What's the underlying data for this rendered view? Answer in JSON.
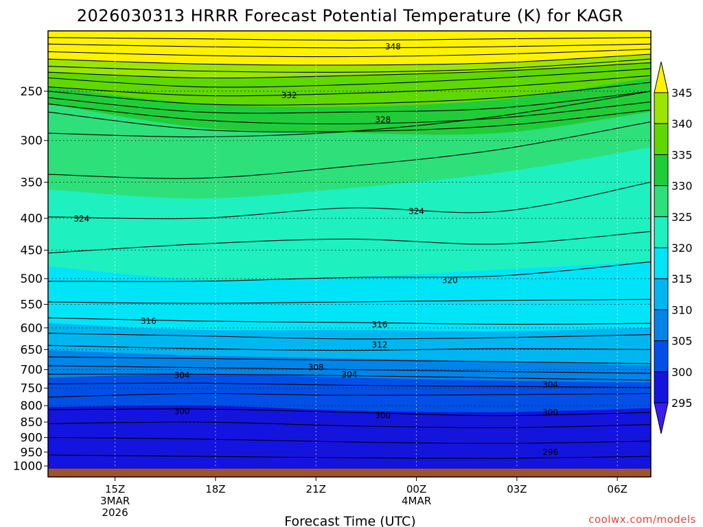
{
  "chart_data": {
    "type": "heatmap",
    "title": "2026030313 HRRR Forecast Potential Temperature (K) for KAGR",
    "xlabel": "Forecast Time (UTC)",
    "ylabel": "",
    "credit": "coolwx.com/models",
    "x_ticks": [
      {
        "h": 15,
        "lines": [
          "15Z",
          "3MAR",
          "2026"
        ]
      },
      {
        "h": 18,
        "lines": [
          "18Z"
        ]
      },
      {
        "h": 21,
        "lines": [
          "21Z"
        ]
      },
      {
        "h": 24,
        "lines": [
          "00Z",
          "4MAR"
        ]
      },
      {
        "h": 27,
        "lines": [
          "03Z"
        ]
      },
      {
        "h": 30,
        "lines": [
          "06Z"
        ]
      }
    ],
    "xlim_hours": [
      13,
      31
    ],
    "y_ticks": [
      250,
      300,
      350,
      400,
      450,
      500,
      550,
      600,
      650,
      700,
      750,
      800,
      850,
      900,
      950,
      1000
    ],
    "ylim_hpa": [
      200,
      1010
    ],
    "colorbar": {
      "ticks": [
        345,
        340,
        335,
        330,
        325,
        320,
        315,
        310,
        305,
        300,
        295
      ],
      "bins": [
        {
          "lo": 340,
          "hi": 345,
          "color": "#9ae600"
        },
        {
          "lo": 335,
          "hi": 340,
          "color": "#5fd800"
        },
        {
          "lo": 330,
          "hi": 335,
          "color": "#20cd38"
        },
        {
          "lo": 325,
          "hi": 330,
          "color": "#2ee07a"
        },
        {
          "lo": 320,
          "hi": 325,
          "color": "#1ef0c0"
        },
        {
          "lo": 315,
          "hi": 320,
          "color": "#00e4f8"
        },
        {
          "lo": 310,
          "hi": 315,
          "color": "#00b6f0"
        },
        {
          "lo": 305,
          "hi": 310,
          "color": "#0084e8"
        },
        {
          "lo": 300,
          "hi": 305,
          "color": "#0050e8"
        },
        {
          "lo": 295,
          "hi": 300,
          "color": "#1414e0"
        }
      ],
      "over_color": "#fff200",
      "under_color": "#3a1cf0"
    },
    "contour_labels": [
      {
        "text": "348",
        "h": 23.3,
        "p": 212
      },
      {
        "text": "332",
        "h": 20.2,
        "p": 254
      },
      {
        "text": "328",
        "h": 23.0,
        "p": 278
      },
      {
        "text": "324",
        "h": 14.0,
        "p": 401
      },
      {
        "text": "324",
        "h": 24.0,
        "p": 390
      },
      {
        "text": "320",
        "h": 25.0,
        "p": 503
      },
      {
        "text": "316",
        "h": 16.0,
        "p": 585
      },
      {
        "text": "316",
        "h": 22.9,
        "p": 593
      },
      {
        "text": "312",
        "h": 22.9,
        "p": 639
      },
      {
        "text": "308",
        "h": 21.0,
        "p": 695
      },
      {
        "text": "304",
        "h": 17.0,
        "p": 715
      },
      {
        "text": "304",
        "h": 22.0,
        "p": 713
      },
      {
        "text": "304",
        "h": 28.0,
        "p": 740
      },
      {
        "text": "300",
        "h": 17.0,
        "p": 817
      },
      {
        "text": "300",
        "h": 23.0,
        "p": 830
      },
      {
        "text": "300",
        "h": 28.0,
        "p": 820
      },
      {
        "text": "296",
        "h": 28.0,
        "p": 950
      }
    ],
    "fill_bands": [
      {
        "color": "#fff200",
        "top": [
          200,
          200,
          200,
          200,
          200
        ],
        "bot": [
          222,
          226,
          227,
          225,
          218
        ]
      },
      {
        "color": "#9ae600",
        "top": [
          222,
          226,
          227,
          225,
          218
        ],
        "bot": [
          233,
          238,
          236,
          232,
          225
        ]
      },
      {
        "color": "#5fd800",
        "top": [
          233,
          238,
          236,
          232,
          225
        ],
        "bot": [
          246,
          262,
          265,
          258,
          238
        ]
      },
      {
        "color": "#20cd38",
        "top": [
          246,
          262,
          265,
          258,
          238
        ],
        "bot": [
          262,
          286,
          292,
          292,
          270
        ]
      },
      {
        "color": "#2ee07a",
        "top": [
          262,
          286,
          292,
          292,
          270
        ],
        "bot": [
          360,
          372,
          358,
          338,
          308
        ]
      },
      {
        "color": "#1ef0c0",
        "top": [
          360,
          372,
          358,
          338,
          308
        ],
        "bot": [
          478,
          502,
          498,
          484,
          470
        ]
      },
      {
        "color": "#00e4f8",
        "top": [
          478,
          502,
          498,
          484,
          470
        ],
        "bot": [
          590,
          605,
          605,
          608,
          600
        ]
      },
      {
        "color": "#00b6f0",
        "top": [
          590,
          605,
          605,
          608,
          600
        ],
        "bot": [
          652,
          665,
          672,
          680,
          690
        ]
      },
      {
        "color": "#0084e8",
        "top": [
          652,
          665,
          672,
          680,
          690
        ],
        "bot": [
          722,
          712,
          722,
          730,
          735
        ]
      },
      {
        "color": "#0050e8",
        "top": [
          722,
          712,
          722,
          730,
          735
        ],
        "bot": [
          805,
          800,
          815,
          820,
          808
        ]
      },
      {
        "color": "#1414e0",
        "top": [
          805,
          800,
          815,
          820,
          808
        ],
        "bot": [
          1010,
          1010,
          1010,
          1010,
          1010
        ]
      }
    ],
    "contours": [
      [
        205,
        206,
        207,
        206,
        205
      ],
      [
        210,
        212,
        213,
        212,
        210
      ],
      [
        216,
        219,
        220,
        218,
        214
      ],
      [
        222,
        226,
        227,
        225,
        218
      ],
      [
        228,
        232,
        233,
        230,
        222
      ],
      [
        233,
        238,
        236,
        232,
        225
      ],
      [
        238,
        246,
        244,
        238,
        230
      ],
      [
        246,
        254,
        252,
        246,
        236
      ],
      [
        250,
        262,
        262,
        256,
        242
      ],
      [
        256,
        270,
        270,
        266,
        250
      ],
      [
        262,
        278,
        282,
        276,
        260
      ],
      [
        270,
        288,
        290,
        284,
        268
      ],
      [
        292,
        296,
        290,
        274,
        250
      ],
      [
        340,
        345,
        330,
        310,
        280
      ],
      [
        398,
        400,
        385,
        390,
        350
      ],
      [
        455,
        440,
        432,
        440,
        420
      ],
      [
        505,
        505,
        498,
        495,
        470
      ],
      [
        545,
        548,
        545,
        542,
        540
      ],
      [
        578,
        585,
        588,
        592,
        590
      ],
      [
        612,
        618,
        625,
        622,
        615
      ],
      [
        640,
        648,
        652,
        648,
        650
      ],
      [
        668,
        672,
        676,
        680,
        685
      ],
      [
        690,
        695,
        700,
        705,
        710
      ],
      [
        712,
        712,
        716,
        722,
        728
      ],
      [
        738,
        736,
        742,
        745,
        748
      ],
      [
        775,
        765,
        770,
        768,
        765
      ],
      [
        812,
        810,
        820,
        830,
        820
      ],
      [
        855,
        850,
        862,
        868,
        858
      ],
      [
        900,
        905,
        915,
        920,
        912
      ],
      [
        960,
        965,
        970,
        972,
        965
      ]
    ]
  }
}
